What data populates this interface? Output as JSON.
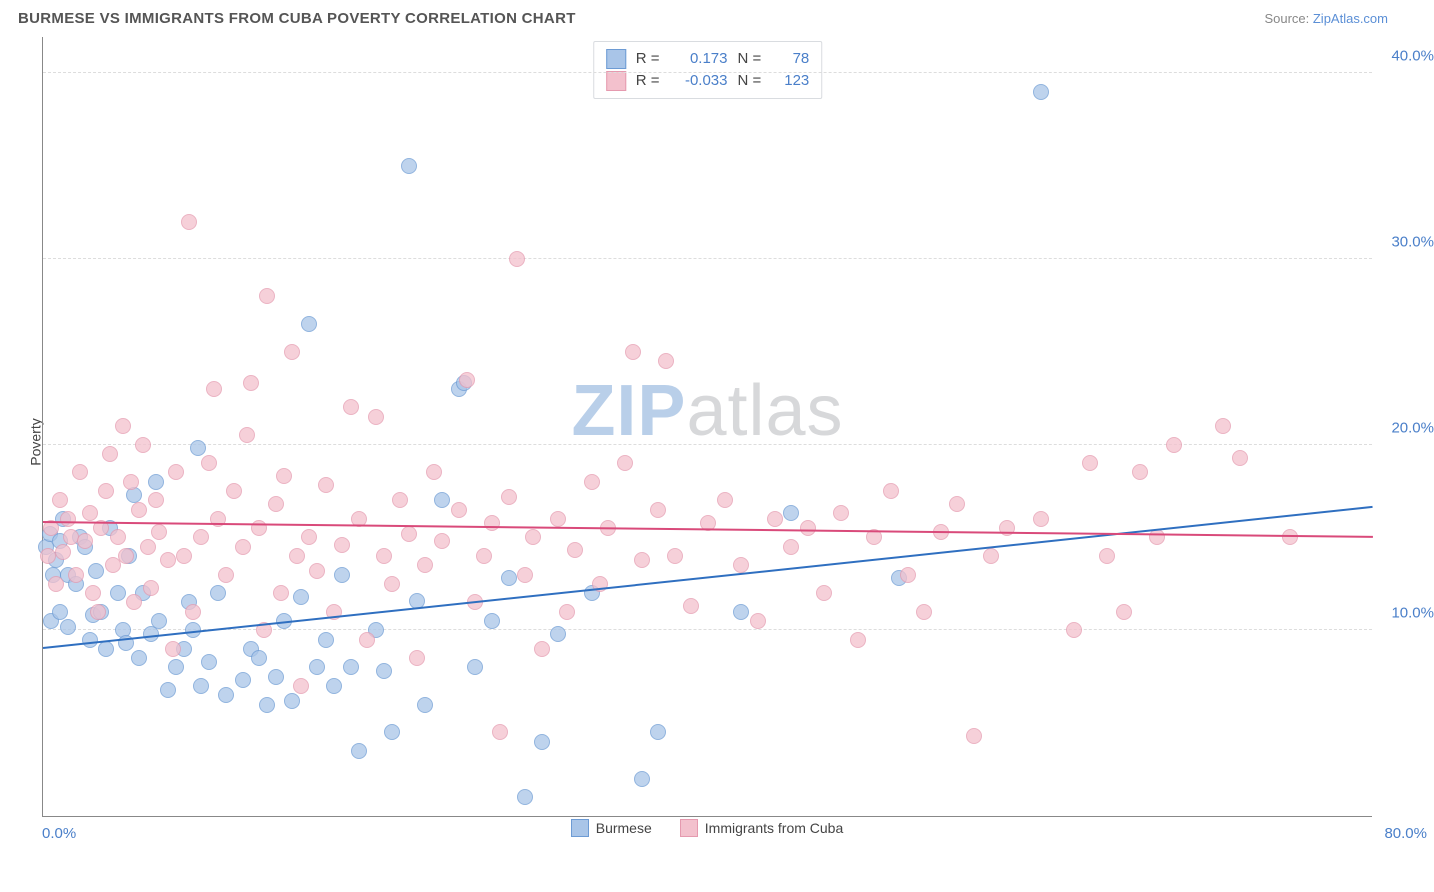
{
  "header": {
    "title": "BURMESE VS IMMIGRANTS FROM CUBA POVERTY CORRELATION CHART",
    "source_prefix": "Source: ",
    "source_link": "ZipAtlas.com"
  },
  "chart": {
    "type": "scatter",
    "ylabel": "Poverty",
    "xlim": [
      0,
      80
    ],
    "ylim": [
      0,
      42
    ],
    "x_tick_min_label": "0.0%",
    "x_tick_max_label": "80.0%",
    "y_ticks": [
      10,
      20,
      30,
      40
    ],
    "y_tick_labels": [
      "10.0%",
      "20.0%",
      "30.0%",
      "40.0%"
    ],
    "grid_color": "#dddddd",
    "axis_color": "#888888",
    "background_color": "#ffffff",
    "point_radius": 8,
    "point_border_width": 1.2,
    "point_fill_opacity": 0.35,
    "watermark": {
      "text_a": "ZIP",
      "text_b": "atlas",
      "color_a": "#b9cfe9",
      "color_b": "#d7d8da"
    },
    "series": [
      {
        "name": "Burmese",
        "color_border": "#6d9bd4",
        "color_fill": "#a9c5e8",
        "R": "0.173",
        "N": "78",
        "trend": {
          "y_at_xmin": 9.0,
          "y_at_xmax": 16.6,
          "color": "#2f6fc0"
        },
        "points": [
          [
            0.2,
            14.5
          ],
          [
            0.4,
            15.2
          ],
          [
            0.6,
            13.0
          ],
          [
            0.8,
            13.8
          ],
          [
            1.0,
            14.8
          ],
          [
            1.2,
            16.0
          ],
          [
            1.5,
            13.0
          ],
          [
            0.5,
            10.5
          ],
          [
            1.0,
            11.0
          ],
          [
            1.5,
            10.2
          ],
          [
            2.0,
            12.5
          ],
          [
            2.2,
            15.0
          ],
          [
            2.5,
            14.5
          ],
          [
            2.8,
            9.5
          ],
          [
            3.0,
            10.8
          ],
          [
            3.2,
            13.2
          ],
          [
            3.5,
            11.0
          ],
          [
            3.8,
            9.0
          ],
          [
            4.0,
            15.5
          ],
          [
            4.5,
            12.0
          ],
          [
            4.8,
            10.0
          ],
          [
            5.0,
            9.3
          ],
          [
            5.2,
            14.0
          ],
          [
            5.5,
            17.3
          ],
          [
            5.8,
            8.5
          ],
          [
            6.0,
            12.0
          ],
          [
            6.5,
            9.8
          ],
          [
            6.8,
            18.0
          ],
          [
            7.0,
            10.5
          ],
          [
            7.5,
            6.8
          ],
          [
            8.0,
            8.0
          ],
          [
            8.5,
            9.0
          ],
          [
            8.8,
            11.5
          ],
          [
            9.0,
            10.0
          ],
          [
            9.3,
            19.8
          ],
          [
            9.5,
            7.0
          ],
          [
            10.0,
            8.3
          ],
          [
            10.5,
            12.0
          ],
          [
            11.0,
            6.5
          ],
          [
            12.0,
            7.3
          ],
          [
            12.5,
            9.0
          ],
          [
            13.0,
            8.5
          ],
          [
            13.5,
            6.0
          ],
          [
            14.0,
            7.5
          ],
          [
            14.5,
            10.5
          ],
          [
            15.0,
            6.2
          ],
          [
            15.5,
            11.8
          ],
          [
            16.0,
            26.5
          ],
          [
            16.5,
            8.0
          ],
          [
            17.0,
            9.5
          ],
          [
            17.5,
            7.0
          ],
          [
            18.0,
            13.0
          ],
          [
            18.5,
            8.0
          ],
          [
            19.0,
            3.5
          ],
          [
            20.0,
            10.0
          ],
          [
            20.5,
            7.8
          ],
          [
            21.0,
            4.5
          ],
          [
            22.0,
            35.0
          ],
          [
            22.5,
            11.6
          ],
          [
            23.0,
            6.0
          ],
          [
            24.0,
            17.0
          ],
          [
            25.0,
            23.0
          ],
          [
            25.3,
            23.3
          ],
          [
            26.0,
            8.0
          ],
          [
            27.0,
            10.5
          ],
          [
            28.0,
            12.8
          ],
          [
            29.0,
            1.0
          ],
          [
            30.0,
            4.0
          ],
          [
            31.0,
            9.8
          ],
          [
            33.0,
            12.0
          ],
          [
            36.0,
            2.0
          ],
          [
            37.0,
            4.5
          ],
          [
            42.0,
            11.0
          ],
          [
            45.0,
            16.3
          ],
          [
            51.5,
            12.8
          ],
          [
            60.0,
            39.0
          ]
        ]
      },
      {
        "name": "Immigrants from Cuba",
        "color_border": "#e59aaf",
        "color_fill": "#f3c1cd",
        "R": "-0.033",
        "N": "123",
        "trend": {
          "y_at_xmin": 15.8,
          "y_at_xmax": 15.0,
          "color": "#d94a7a"
        },
        "points": [
          [
            0.3,
            14.0
          ],
          [
            0.5,
            15.5
          ],
          [
            0.8,
            12.5
          ],
          [
            1.0,
            17.0
          ],
          [
            1.2,
            14.2
          ],
          [
            1.5,
            16.0
          ],
          [
            1.7,
            15.0
          ],
          [
            2.0,
            13.0
          ],
          [
            2.2,
            18.5
          ],
          [
            2.5,
            14.8
          ],
          [
            2.8,
            16.3
          ],
          [
            3.0,
            12.0
          ],
          [
            3.3,
            11.0
          ],
          [
            3.5,
            15.5
          ],
          [
            3.8,
            17.5
          ],
          [
            4.0,
            19.5
          ],
          [
            4.2,
            13.5
          ],
          [
            4.5,
            15.0
          ],
          [
            4.8,
            21.0
          ],
          [
            5.0,
            14.0
          ],
          [
            5.3,
            18.0
          ],
          [
            5.5,
            11.5
          ],
          [
            5.8,
            16.5
          ],
          [
            6.0,
            20.0
          ],
          [
            6.3,
            14.5
          ],
          [
            6.5,
            12.3
          ],
          [
            6.8,
            17.0
          ],
          [
            7.0,
            15.3
          ],
          [
            7.5,
            13.8
          ],
          [
            7.8,
            9.0
          ],
          [
            8.0,
            18.5
          ],
          [
            8.5,
            14.0
          ],
          [
            8.8,
            32.0
          ],
          [
            9.0,
            11.0
          ],
          [
            9.5,
            15.0
          ],
          [
            10.0,
            19.0
          ],
          [
            10.3,
            23.0
          ],
          [
            10.5,
            16.0
          ],
          [
            11.0,
            13.0
          ],
          [
            11.5,
            17.5
          ],
          [
            12.0,
            14.5
          ],
          [
            12.3,
            20.5
          ],
          [
            12.5,
            23.3
          ],
          [
            13.0,
            15.5
          ],
          [
            13.3,
            10.0
          ],
          [
            13.5,
            28.0
          ],
          [
            14.0,
            16.8
          ],
          [
            14.3,
            12.0
          ],
          [
            14.5,
            18.3
          ],
          [
            15.0,
            25.0
          ],
          [
            15.3,
            14.0
          ],
          [
            15.5,
            7.0
          ],
          [
            16.0,
            15.0
          ],
          [
            16.5,
            13.2
          ],
          [
            17.0,
            17.8
          ],
          [
            17.5,
            11.0
          ],
          [
            18.0,
            14.6
          ],
          [
            18.5,
            22.0
          ],
          [
            19.0,
            16.0
          ],
          [
            19.5,
            9.5
          ],
          [
            20.0,
            21.5
          ],
          [
            20.5,
            14.0
          ],
          [
            21.0,
            12.5
          ],
          [
            21.5,
            17.0
          ],
          [
            22.0,
            15.2
          ],
          [
            22.5,
            8.5
          ],
          [
            23.0,
            13.5
          ],
          [
            23.5,
            18.5
          ],
          [
            24.0,
            14.8
          ],
          [
            25.0,
            16.5
          ],
          [
            25.5,
            23.5
          ],
          [
            26.0,
            11.5
          ],
          [
            26.5,
            14.0
          ],
          [
            27.0,
            15.8
          ],
          [
            27.5,
            4.5
          ],
          [
            28.0,
            17.2
          ],
          [
            28.5,
            30.0
          ],
          [
            29.0,
            13.0
          ],
          [
            29.5,
            15.0
          ],
          [
            30.0,
            9.0
          ],
          [
            31.0,
            16.0
          ],
          [
            31.5,
            11.0
          ],
          [
            32.0,
            14.3
          ],
          [
            33.0,
            18.0
          ],
          [
            33.5,
            12.5
          ],
          [
            34.0,
            15.5
          ],
          [
            35.0,
            19.0
          ],
          [
            35.5,
            25.0
          ],
          [
            36.0,
            13.8
          ],
          [
            37.0,
            16.5
          ],
          [
            37.5,
            24.5
          ],
          [
            38.0,
            14.0
          ],
          [
            39.0,
            11.3
          ],
          [
            40.0,
            15.8
          ],
          [
            41.0,
            17.0
          ],
          [
            42.0,
            13.5
          ],
          [
            43.0,
            10.5
          ],
          [
            44.0,
            16.0
          ],
          [
            45.0,
            14.5
          ],
          [
            46.0,
            15.5
          ],
          [
            47.0,
            12.0
          ],
          [
            48.0,
            16.3
          ],
          [
            49.0,
            9.5
          ],
          [
            50.0,
            15.0
          ],
          [
            51.0,
            17.5
          ],
          [
            52.0,
            13.0
          ],
          [
            53.0,
            11.0
          ],
          [
            54.0,
            15.3
          ],
          [
            55.0,
            16.8
          ],
          [
            56.0,
            4.3
          ],
          [
            57.0,
            14.0
          ],
          [
            58.0,
            15.5
          ],
          [
            60.0,
            16.0
          ],
          [
            62.0,
            10.0
          ],
          [
            63.0,
            19.0
          ],
          [
            64.0,
            14.0
          ],
          [
            65.0,
            11.0
          ],
          [
            66.0,
            18.5
          ],
          [
            67.0,
            15.0
          ],
          [
            68.0,
            20.0
          ],
          [
            71.0,
            21.0
          ],
          [
            72.0,
            19.3
          ],
          [
            75.0,
            15.0
          ]
        ]
      }
    ]
  }
}
